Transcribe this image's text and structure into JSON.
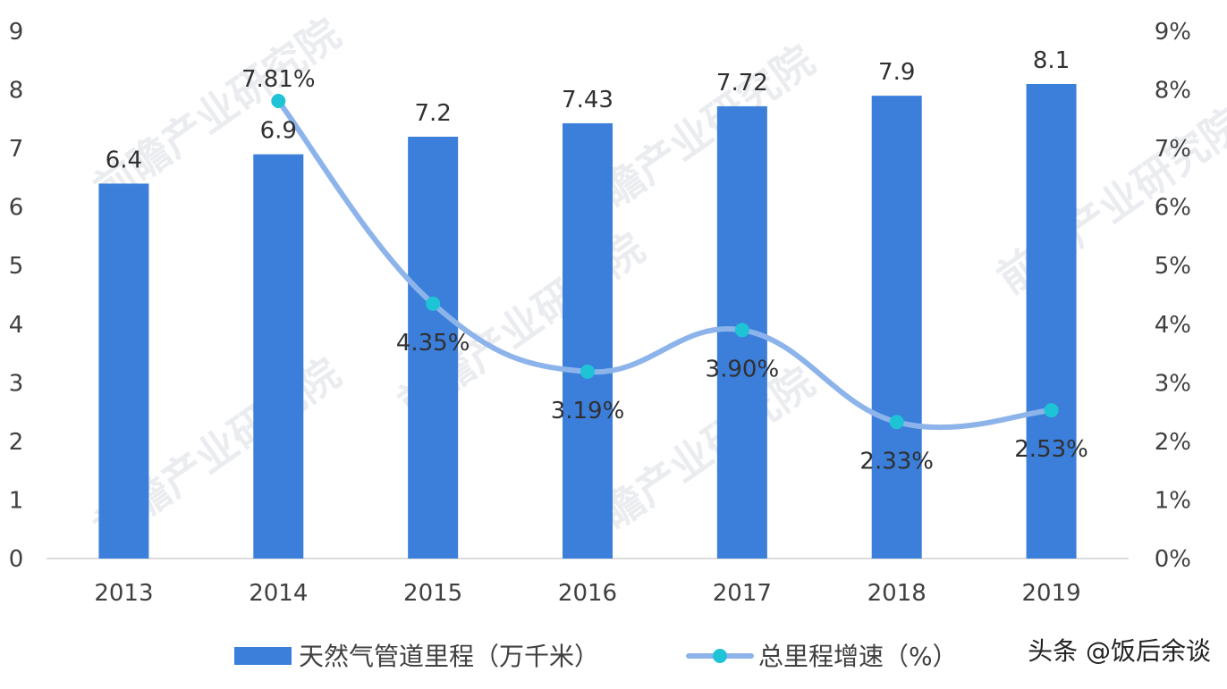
{
  "chart_data": {
    "type": "bar",
    "categories": [
      "2013",
      "2014",
      "2015",
      "2016",
      "2017",
      "2018",
      "2019"
    ],
    "series": [
      {
        "name": "天然气管道里程（万千米）",
        "type": "bar",
        "axis": "left",
        "values": [
          6.4,
          6.9,
          7.2,
          7.43,
          7.72,
          7.9,
          8.1
        ],
        "labels": [
          "6.4",
          "6.9",
          "7.2",
          "7.43",
          "7.72",
          "7.9",
          "8.1"
        ],
        "color": "#3b7fdb"
      },
      {
        "name": "总里程增速（%）",
        "type": "line",
        "axis": "right",
        "x": [
          "2014",
          "2015",
          "2016",
          "2017",
          "2018",
          "2019"
        ],
        "values": [
          7.81,
          4.35,
          3.19,
          3.9,
          2.33,
          2.53
        ],
        "labels": [
          "7.81%",
          "4.35%",
          "3.19%",
          "3.90%",
          "2.33%",
          "2.53%"
        ],
        "line_color": "#8db4ea",
        "marker_color": "#1fc3d6"
      }
    ],
    "left_axis": {
      "ylim": [
        0,
        9
      ],
      "ticks": [
        "0",
        "1",
        "2",
        "3",
        "4",
        "5",
        "6",
        "7",
        "8",
        "9"
      ]
    },
    "right_axis": {
      "ylim": [
        0,
        9
      ],
      "ticks": [
        "0%",
        "1%",
        "2%",
        "3%",
        "4%",
        "5%",
        "6%",
        "7%",
        "8%",
        "9%"
      ]
    },
    "grid": false,
    "legend": "bottom"
  },
  "watermark": "前瞻产业研究院",
  "credit": "头条 @饭后余谈"
}
